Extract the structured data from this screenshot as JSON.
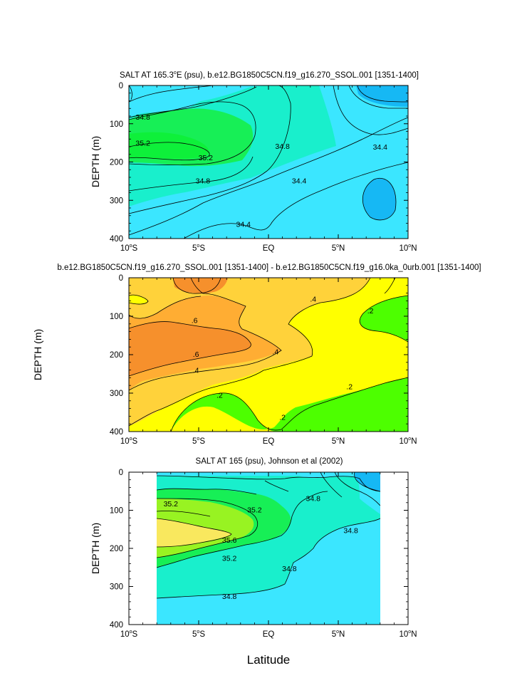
{
  "chart_data": [
    {
      "type": "contour",
      "title": "SALT AT 165.3°E (psu), b.e12.BG1850C5CN.f19_g16.270_SSOL.001 [1351-1400]",
      "title_main": "SALT AT 165.3",
      "title_sup": "o",
      "title_rest": "E (psu), b.e12.BG1850C5CN.f19_g16.270_SSOL.001 [1351-1400]",
      "ylabel": "DEPTH (m)",
      "xlabel": "",
      "xlim": [
        -10,
        10
      ],
      "ylim": [
        0,
        400
      ],
      "y_inverted": true,
      "contour_labels": [
        {
          "text": "34.8",
          "x": -9.0,
          "y": 82
        },
        {
          "text": "35.2",
          "x": -9.0,
          "y": 150
        },
        {
          "text": "35.2",
          "x": -4.5,
          "y": 188
        },
        {
          "text": "34.8",
          "x": -4.7,
          "y": 248
        },
        {
          "text": "34.8",
          "x": 1.0,
          "y": 158
        },
        {
          "text": "34.4",
          "x": 2.2,
          "y": 248
        },
        {
          "text": "34.4",
          "x": -1.8,
          "y": 362
        },
        {
          "text": "34.4",
          "x": 8.0,
          "y": 160
        }
      ]
    },
    {
      "type": "contour",
      "title": "b.e12.BG1850C5CN.f19_g16.270_SSOL.001 [1351-1400] - b.e12.BG1850C5CN.f19_g16.0ka_0urb.001 [1351-1400]",
      "ylabel": "DEPTH (m)",
      "xlabel": "",
      "xlim": [
        -10,
        10
      ],
      "ylim": [
        0,
        400
      ],
      "y_inverted": true,
      "contour_labels": [
        {
          "text": ".6",
          "x": -5.3,
          "y": 110
        },
        {
          "text": ".6",
          "x": -5.2,
          "y": 198
        },
        {
          "text": ".4",
          "x": -5.2,
          "y": 240
        },
        {
          "text": ".4",
          "x": 0.5,
          "y": 192
        },
        {
          "text": ".4",
          "x": 3.2,
          "y": 55
        },
        {
          "text": ".2",
          "x": 7.3,
          "y": 85
        },
        {
          "text": ".2",
          "x": -3.5,
          "y": 305
        },
        {
          "text": ".2",
          "x": 1.0,
          "y": 362
        },
        {
          "text": ".2",
          "x": 5.8,
          "y": 282
        }
      ]
    },
    {
      "type": "contour",
      "title": "SALT AT 165 (psu), Johnson et al (2002)",
      "ylabel": "DEPTH (m)",
      "xlabel": "Latitude",
      "xlim": [
        -10,
        10
      ],
      "ylim": [
        0,
        400
      ],
      "y_inverted": true,
      "data_x_range": [
        -8,
        8
      ],
      "contour_labels": [
        {
          "text": "35.2",
          "x": -7.0,
          "y": 82
        },
        {
          "text": "35.2",
          "x": -1.0,
          "y": 98
        },
        {
          "text": "35.6",
          "x": -2.8,
          "y": 178
        },
        {
          "text": "35.2",
          "x": -2.8,
          "y": 225
        },
        {
          "text": "34.8",
          "x": 1.5,
          "y": 252
        },
        {
          "text": "34.8",
          "x": -2.8,
          "y": 325
        },
        {
          "text": "34.8",
          "x": 3.2,
          "y": 68
        },
        {
          "text": "34.8",
          "x": 5.9,
          "y": 152
        }
      ]
    }
  ],
  "x_ticks": [
    {
      "v": -10,
      "num": "10",
      "sup": "o",
      "dir": "S"
    },
    {
      "v": -5,
      "num": "5",
      "sup": "o",
      "dir": "S"
    },
    {
      "v": 0,
      "num": "EQ",
      "sup": "",
      "dir": ""
    },
    {
      "v": 5,
      "num": "5",
      "sup": "o",
      "dir": "N"
    },
    {
      "v": 10,
      "num": "10",
      "sup": "o",
      "dir": "N"
    }
  ],
  "y_ticks": [
    "0",
    "100",
    "200",
    "300",
    "400"
  ],
  "colors": {
    "c_344": "#16b8f4",
    "c_348": "#3be6ff",
    "c_352": "#19efcc",
    "c_356": "#17ef56",
    "c_360": "#98f322",
    "c_364": "#f9e85e",
    "d_00": "#4dff00",
    "d_02": "#ffff00",
    "d_04": "#ffd23a",
    "d_06": "#ffad33",
    "d_08": "#f6902c"
  }
}
